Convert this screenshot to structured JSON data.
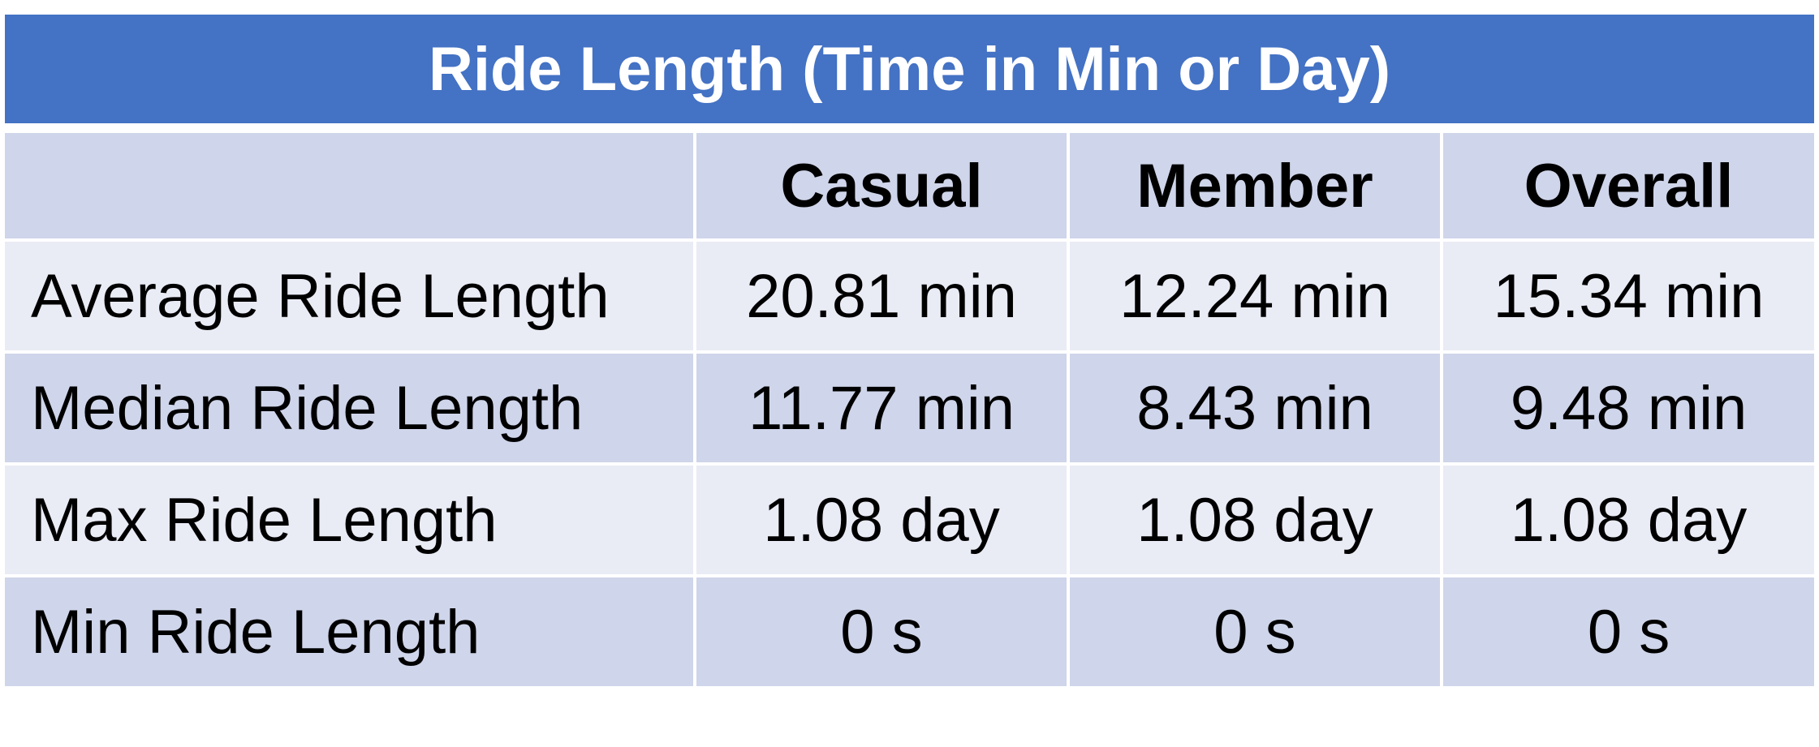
{
  "table": {
    "title": "Ride Length (Time in Min or Day)",
    "corner": "",
    "columns": [
      "Casual",
      "Member",
      "Overall"
    ],
    "rows": [
      {
        "label": "Average Ride Length",
        "values": [
          "20.81 min",
          "12.24 min",
          "15.34 min"
        ]
      },
      {
        "label": "Median Ride Length",
        "values": [
          "11.77 min",
          "8.43 min",
          "9.48 min"
        ]
      },
      {
        "label": "Max Ride Length",
        "values": [
          "1.08 day",
          "1.08 day",
          "1.08 day"
        ]
      },
      {
        "label": "Min Ride Length",
        "values": [
          "0 s",
          "0 s",
          "0 s"
        ]
      }
    ]
  },
  "colors": {
    "title_bg": "#4472c4",
    "title_text": "#ffffff",
    "band_dark": "#cfd5ea",
    "band_light": "#e9ebf5"
  }
}
